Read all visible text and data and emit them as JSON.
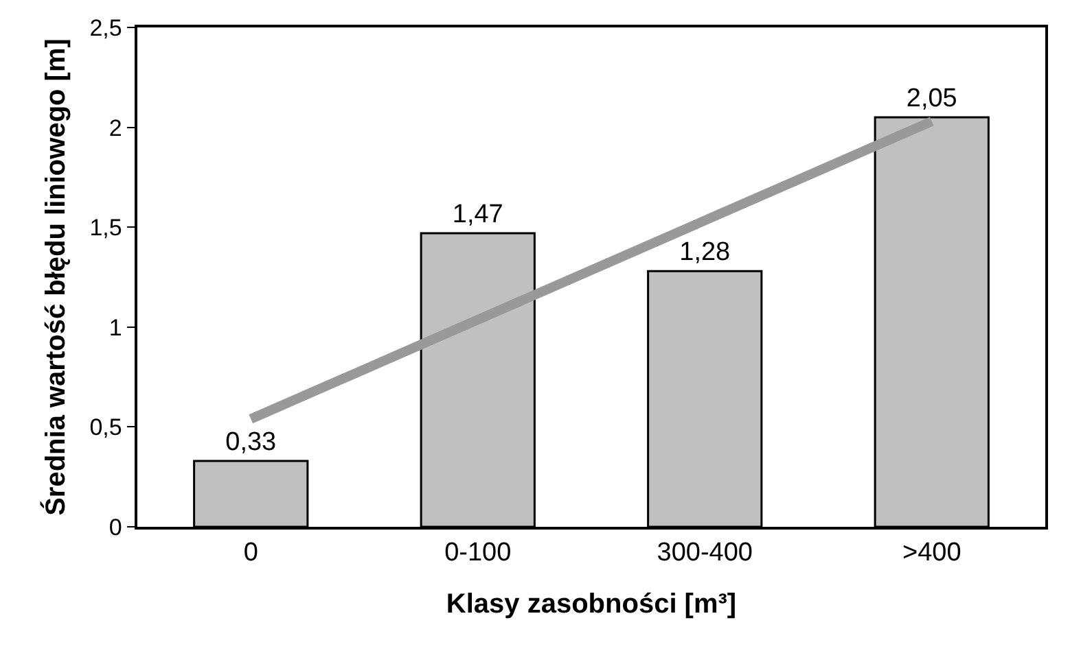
{
  "chart_data": {
    "type": "bar",
    "categories": [
      "0",
      "0-100",
      "300-400",
      ">400"
    ],
    "series": [
      {
        "color": "#c0c0c0",
        "values": [
          0.33,
          1.47,
          1.28,
          2.05
        ],
        "value_labels": [
          "0,33",
          "1,47",
          "1,28",
          "2,05"
        ]
      },
      {
        "type": "line",
        "color": "#999999",
        "x": [
          "0",
          ">400"
        ],
        "values": [
          0.54,
          2.03
        ]
      }
    ],
    "xlabel": "Klasy zasobności [m³]",
    "ylabel": "Średnia wartość błędu liniowego [m]",
    "ylim": [
      0,
      2.5
    ],
    "yticks": [
      0,
      {
        "value": 0.5,
        "label": "0,5"
      },
      1,
      {
        "value": 1.5,
        "label": "1,5"
      },
      2,
      {
        "value": 2.5,
        "label": "2,5"
      }
    ],
    "grid": false
  }
}
